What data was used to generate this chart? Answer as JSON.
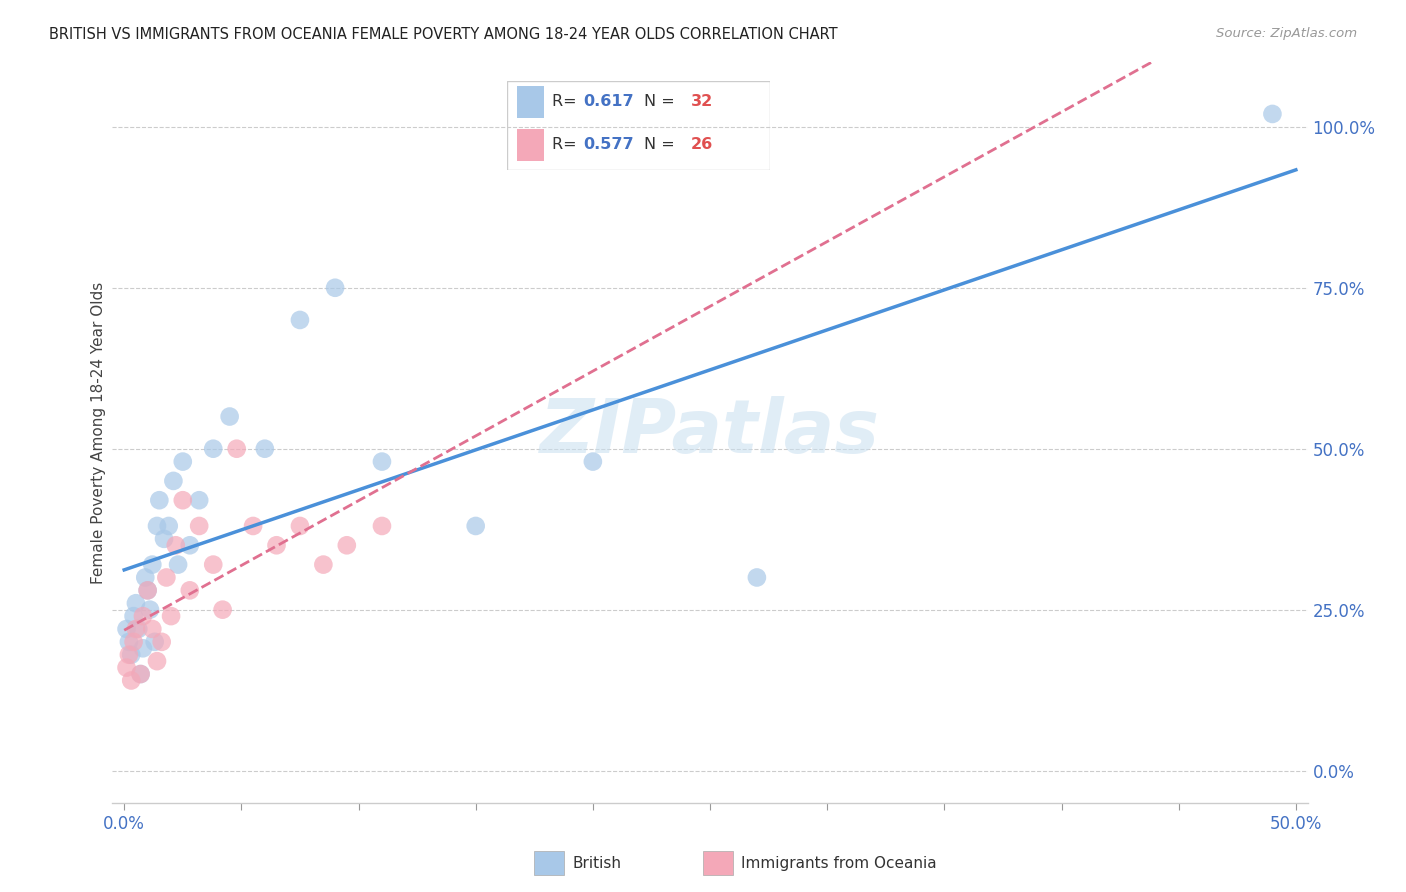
{
  "title": "BRITISH VS IMMIGRANTS FROM OCEANIA FEMALE POVERTY AMONG 18-24 YEAR OLDS CORRELATION CHART",
  "source": "Source: ZipAtlas.com",
  "ylabel_label": "Female Poverty Among 18-24 Year Olds",
  "legend_label1": "British",
  "legend_label2": "Immigrants from Oceania",
  "r_british": 0.617,
  "n_british": 32,
  "r_oceania": 0.577,
  "n_oceania": 26,
  "xlim": [
    -0.005,
    0.505
  ],
  "ylim": [
    -0.05,
    1.1
  ],
  "x_ticks": [
    0.0,
    0.05,
    0.1,
    0.15,
    0.2,
    0.25,
    0.3,
    0.35,
    0.4,
    0.45,
    0.5
  ],
  "y_ticks": [
    0.0,
    0.25,
    0.5,
    0.75,
    1.0
  ],
  "blue_dot_color": "#a8c8e8",
  "pink_dot_color": "#f4a8b8",
  "blue_line_color": "#4a90d9",
  "pink_line_color": "#e07090",
  "watermark": "ZIPatlas",
  "british_x": [
    0.001,
    0.002,
    0.003,
    0.004,
    0.005,
    0.006,
    0.007,
    0.008,
    0.009,
    0.01,
    0.011,
    0.012,
    0.013,
    0.014,
    0.015,
    0.017,
    0.019,
    0.021,
    0.023,
    0.025,
    0.028,
    0.032,
    0.038,
    0.045,
    0.06,
    0.075,
    0.09,
    0.11,
    0.15,
    0.2,
    0.27,
    0.49
  ],
  "british_y": [
    0.22,
    0.2,
    0.18,
    0.24,
    0.26,
    0.22,
    0.15,
    0.19,
    0.3,
    0.28,
    0.25,
    0.32,
    0.2,
    0.38,
    0.42,
    0.36,
    0.38,
    0.45,
    0.32,
    0.48,
    0.35,
    0.42,
    0.5,
    0.55,
    0.5,
    0.7,
    0.75,
    0.48,
    0.38,
    0.48,
    0.3,
    1.02
  ],
  "oceania_x": [
    0.001,
    0.002,
    0.003,
    0.004,
    0.005,
    0.007,
    0.008,
    0.01,
    0.012,
    0.014,
    0.016,
    0.018,
    0.02,
    0.022,
    0.025,
    0.028,
    0.032,
    0.038,
    0.042,
    0.048,
    0.055,
    0.065,
    0.075,
    0.085,
    0.095,
    0.11
  ],
  "oceania_y": [
    0.16,
    0.18,
    0.14,
    0.2,
    0.22,
    0.15,
    0.24,
    0.28,
    0.22,
    0.17,
    0.2,
    0.3,
    0.24,
    0.35,
    0.42,
    0.28,
    0.38,
    0.32,
    0.25,
    0.5,
    0.38,
    0.35,
    0.38,
    0.32,
    0.35,
    0.38
  ]
}
